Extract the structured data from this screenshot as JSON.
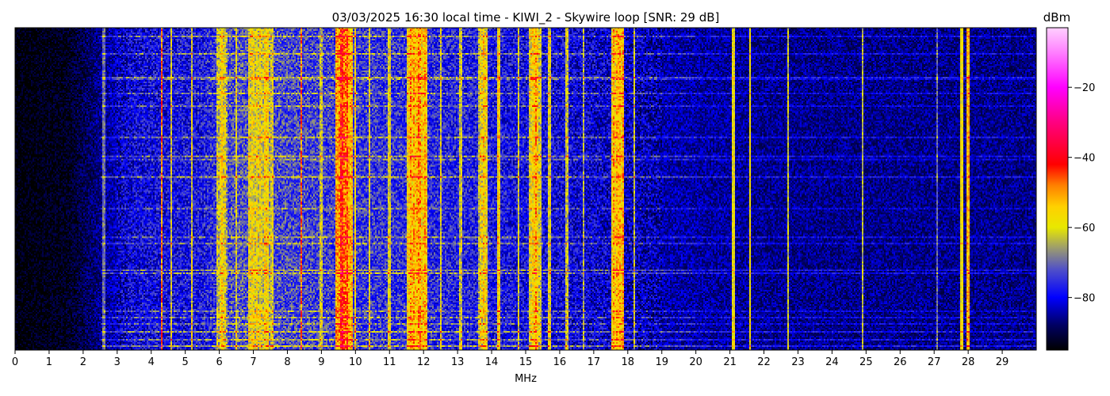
{
  "chart_data": {
    "type": "heatmap",
    "title": "03/03/2025 16:30 local time - KIWI_2 - Skywire loop [SNR: 29 dB]",
    "xlabel": "MHz",
    "ylabel": "",
    "xlim": [
      0,
      30
    ],
    "xticks": [
      0,
      1,
      2,
      3,
      4,
      5,
      6,
      7,
      8,
      9,
      10,
      11,
      12,
      13,
      14,
      15,
      16,
      17,
      18,
      19,
      20,
      21,
      22,
      23,
      24,
      25,
      26,
      27,
      28,
      29
    ],
    "colorbar": {
      "label": "dBm",
      "range": [
        -95,
        -3
      ],
      "ticks": [
        -20,
        -40,
        -60,
        -80
      ],
      "tick_labels": [
        "−20",
        "−40",
        "−60",
        "−80"
      ],
      "colormap": [
        {
          "value": -95,
          "color": "#000000"
        },
        {
          "value": -88,
          "color": "#000060"
        },
        {
          "value": -80,
          "color": "#0000ff"
        },
        {
          "value": -72,
          "color": "#5050c8"
        },
        {
          "value": -66,
          "color": "#9a9a70"
        },
        {
          "value": -60,
          "color": "#e8e800"
        },
        {
          "value": -54,
          "color": "#ffd000"
        },
        {
          "value": -48,
          "color": "#ff8000"
        },
        {
          "value": -42,
          "color": "#ff0000"
        },
        {
          "value": -30,
          "color": "#ff0080"
        },
        {
          "value": -20,
          "color": "#ff00ff"
        },
        {
          "value": -10,
          "color": "#ff80ff"
        },
        {
          "value": -3,
          "color": "#ffd0ff"
        }
      ]
    },
    "background_noise_dbm": [
      {
        "mhz": 0,
        "dbm": -95
      },
      {
        "mhz": 1.5,
        "dbm": -93
      },
      {
        "mhz": 2.5,
        "dbm": -86
      },
      {
        "mhz": 3.5,
        "dbm": -80
      },
      {
        "mhz": 5.5,
        "dbm": -78
      },
      {
        "mhz": 6.5,
        "dbm": -72
      },
      {
        "mhz": 9,
        "dbm": -74
      },
      {
        "mhz": 12,
        "dbm": -76
      },
      {
        "mhz": 16,
        "dbm": -80
      },
      {
        "mhz": 19,
        "dbm": -84
      },
      {
        "mhz": 23,
        "dbm": -86
      },
      {
        "mhz": 30,
        "dbm": -86
      }
    ],
    "bands": [
      {
        "from": 5.9,
        "to": 6.25,
        "dbm": -60
      },
      {
        "from": 6.85,
        "to": 7.6,
        "dbm": -58
      },
      {
        "from": 9.4,
        "to": 9.9,
        "dbm": -46
      },
      {
        "from": 11.5,
        "to": 12.1,
        "dbm": -52
      },
      {
        "from": 13.6,
        "to": 13.9,
        "dbm": -56
      },
      {
        "from": 15.1,
        "to": 15.45,
        "dbm": -54
      },
      {
        "from": 17.5,
        "to": 17.9,
        "dbm": -50
      }
    ],
    "lines": [
      {
        "mhz": 2.6,
        "dbm": -70
      },
      {
        "mhz": 4.3,
        "dbm": -48
      },
      {
        "mhz": 4.6,
        "dbm": -60
      },
      {
        "mhz": 5.2,
        "dbm": -60
      },
      {
        "mhz": 6.5,
        "dbm": -60
      },
      {
        "mhz": 8.4,
        "dbm": -48
      },
      {
        "mhz": 9.0,
        "dbm": -62
      },
      {
        "mhz": 10.0,
        "dbm": -56
      },
      {
        "mhz": 10.4,
        "dbm": -58
      },
      {
        "mhz": 11.0,
        "dbm": -60
      },
      {
        "mhz": 12.5,
        "dbm": -60
      },
      {
        "mhz": 13.1,
        "dbm": -62
      },
      {
        "mhz": 14.2,
        "dbm": -56
      },
      {
        "mhz": 14.8,
        "dbm": -60
      },
      {
        "mhz": 15.7,
        "dbm": -60
      },
      {
        "mhz": 16.2,
        "dbm": -62
      },
      {
        "mhz": 16.7,
        "dbm": -64
      },
      {
        "mhz": 18.2,
        "dbm": -62
      },
      {
        "mhz": 21.1,
        "dbm": -60
      },
      {
        "mhz": 21.6,
        "dbm": -58
      },
      {
        "mhz": 22.7,
        "dbm": -62
      },
      {
        "mhz": 24.9,
        "dbm": -64
      },
      {
        "mhz": 27.1,
        "dbm": -70
      },
      {
        "mhz": 27.8,
        "dbm": -58
      },
      {
        "mhz": 28.0,
        "dbm": -52
      }
    ],
    "grid": false,
    "colorbar_position": "right"
  }
}
